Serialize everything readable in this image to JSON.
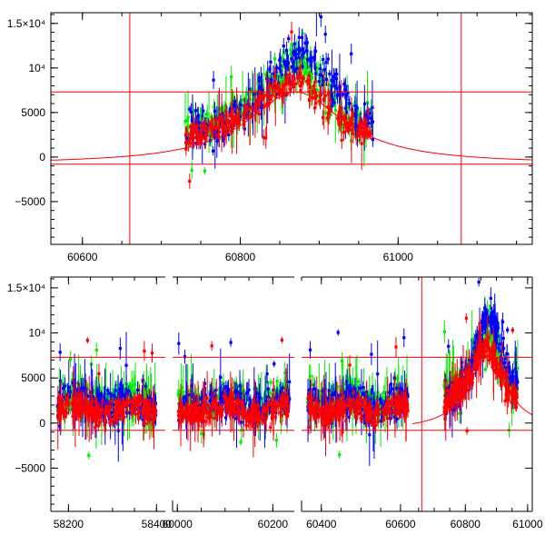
{
  "chart_data": [
    {
      "type": "scatter",
      "title": "",
      "xlabel": "",
      "ylabel": "",
      "xlim": [
        60560,
        61170
      ],
      "ylim": [
        -9800,
        16200
      ],
      "xticks": [
        60600,
        60800,
        61000
      ],
      "xtick_labels": [
        "60600",
        "60800",
        "61000"
      ],
      "yticks": [
        -5000,
        0,
        5000,
        10000,
        15000
      ],
      "ytick_labels": [
        "−5000",
        "0",
        "5000",
        "10⁴",
        "1.5×10⁴"
      ],
      "series": [
        {
          "name": "red band",
          "color": "#ff0000",
          "x": [
            60735,
            60760,
            60790,
            60820,
            60850,
            60870,
            60890,
            60920,
            60950
          ],
          "y": [
            2000,
            3000,
            4000,
            5500,
            8000,
            9000,
            7500,
            5000,
            3000
          ]
        },
        {
          "name": "green band",
          "color": "#00ee00",
          "x": [
            60760,
            60800,
            60840,
            60870,
            60900,
            60940
          ],
          "y": [
            3500,
            5000,
            8500,
            11000,
            8500,
            4000
          ]
        },
        {
          "name": "blue band",
          "color": "#0000ff",
          "x": [
            60770,
            60810,
            60840,
            60880,
            60910,
            60950
          ],
          "y": [
            3000,
            5500,
            9000,
            12000,
            9000,
            4500
          ]
        }
      ],
      "reference_lines": {
        "horizontal": [
          7300,
          -800
        ],
        "vertical": [
          60660,
          61080
        ]
      },
      "model_curve": {
        "color": "#ff0000",
        "peak_x": 60870,
        "peak_y": 7300,
        "baseline": -800
      }
    },
    {
      "type": "scatter",
      "title": "",
      "xlabel": "",
      "ylabel": "",
      "panels_xlim": [
        [
          58160,
          58420
        ],
        [
          59990,
          60245
        ],
        [
          60350,
          60630
        ],
        [
          60630,
          61015
        ]
      ],
      "ylim": [
        -9800,
        16200
      ],
      "xtick_labels": [
        "58200",
        "58400",
        "60000",
        "60200",
        "60400",
        "60600",
        "60800",
        "61000"
      ],
      "yticks": [
        -5000,
        0,
        5000,
        10000,
        15000
      ],
      "ytick_labels": [
        "−5000",
        "0",
        "5000",
        "10⁴",
        "1.5×10⁴"
      ],
      "series": [
        {
          "name": "red band",
          "color": "#ff0000"
        },
        {
          "name": "green band",
          "color": "#00ee00"
        },
        {
          "name": "blue band",
          "color": "#0000ff"
        }
      ],
      "reference_lines": {
        "horizontal": [
          7300,
          -800
        ],
        "vertical": [
          60660
        ]
      },
      "model_curve": {
        "color": "#ff0000",
        "peak_x": 60870,
        "peak_y": 7300,
        "baseline": -800
      }
    }
  ]
}
